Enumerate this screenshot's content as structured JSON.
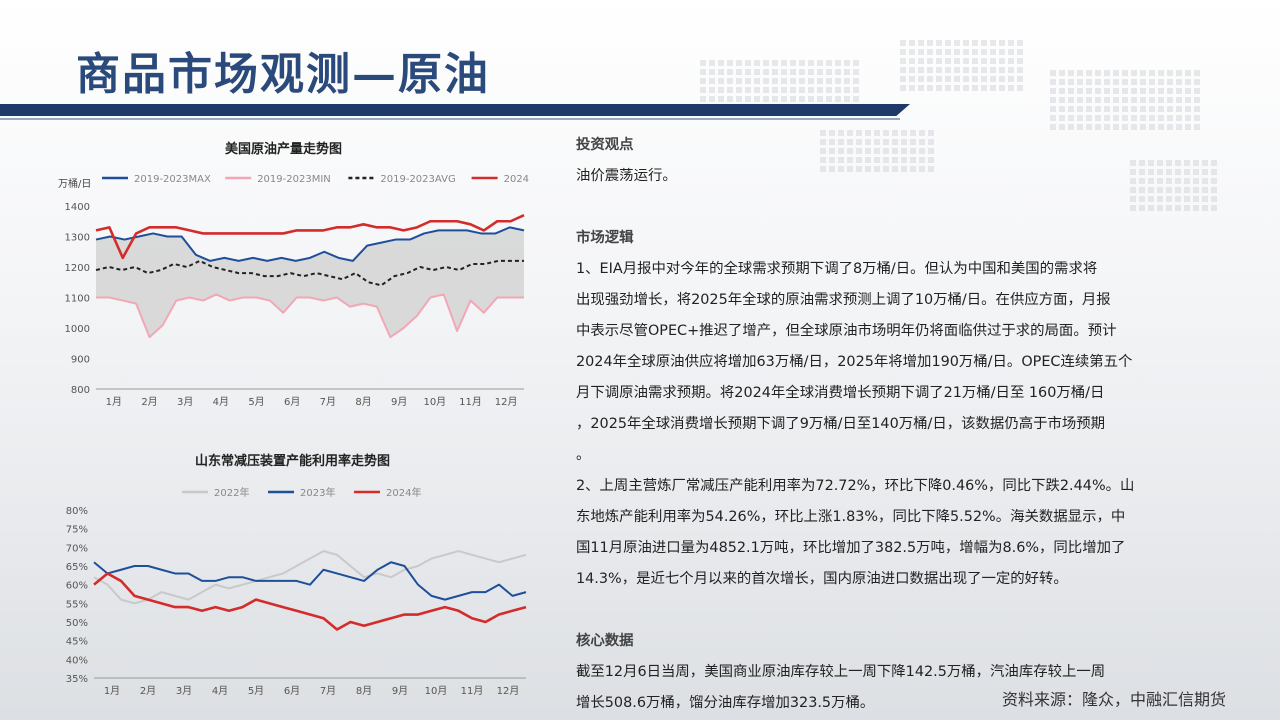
{
  "title": "商品市场观测—原油",
  "charts": [
    {
      "type": "line",
      "title": "美国原油产量走势图",
      "ylabel": "万桶/日",
      "yticks": [
        "1400",
        "1300",
        "1200",
        "1100",
        "1000",
        "900",
        "800"
      ],
      "ylim": [
        800,
        1400
      ],
      "categories": [
        "1月",
        "2月",
        "3月",
        "4月",
        "5月",
        "6月",
        "7月",
        "8月",
        "9月",
        "10月",
        "11月",
        "12月"
      ],
      "grid": false,
      "legend_position": "top",
      "series": [
        {
          "name": "2019-2023MAX",
          "color": "#1f4e9a",
          "style": "solid",
          "values": [
            1290,
            1300,
            1290,
            1300,
            1310,
            1300,
            1300,
            1240,
            1220,
            1230,
            1220,
            1230,
            1220,
            1230,
            1220,
            1230,
            1250,
            1230,
            1220,
            1270,
            1280,
            1290,
            1290,
            1310,
            1320,
            1320,
            1320,
            1310,
            1310,
            1330,
            1320
          ]
        },
        {
          "name": "2019-2023MIN",
          "color": "#f2a7b4",
          "style": "solid",
          "values": [
            1100,
            1100,
            1090,
            1080,
            970,
            1010,
            1090,
            1100,
            1090,
            1110,
            1090,
            1100,
            1100,
            1090,
            1050,
            1100,
            1100,
            1090,
            1100,
            1070,
            1080,
            1070,
            970,
            1000,
            1040,
            1100,
            1110,
            990,
            1090,
            1050,
            1100,
            1100,
            1100
          ]
        },
        {
          "name": "2019-2023AVG",
          "color": "#222222",
          "style": "dashed",
          "values": [
            1190,
            1200,
            1190,
            1200,
            1180,
            1190,
            1210,
            1200,
            1220,
            1200,
            1190,
            1180,
            1180,
            1170,
            1170,
            1180,
            1170,
            1180,
            1170,
            1160,
            1180,
            1150,
            1140,
            1170,
            1180,
            1200,
            1190,
            1200,
            1190,
            1210,
            1210,
            1220,
            1220,
            1220
          ]
        },
        {
          "name": "2024",
          "color": "#d42b2b",
          "style": "solid",
          "values": [
            1320,
            1330,
            1230,
            1310,
            1330,
            1330,
            1330,
            1320,
            1310,
            1310,
            1310,
            1310,
            1310,
            1310,
            1310,
            1320,
            1320,
            1320,
            1330,
            1330,
            1340,
            1330,
            1330,
            1320,
            1330,
            1350,
            1350,
            1350,
            1340,
            1320,
            1350,
            1350,
            1370
          ]
        }
      ]
    },
    {
      "type": "line",
      "title": "山东常减压装置产能利用率走势图",
      "yticks": [
        "80%",
        "75%",
        "70%",
        "65%",
        "60%",
        "55%",
        "50%",
        "45%",
        "40%",
        "35%"
      ],
      "ylim": [
        35,
        80
      ],
      "categories": [
        "1月",
        "2月",
        "3月",
        "4月",
        "5月",
        "6月",
        "7月",
        "8月",
        "9月",
        "10月",
        "11月",
        "12月"
      ],
      "grid": false,
      "legend_position": "top",
      "series": [
        {
          "name": "2022年",
          "color": "#c9c9c9",
          "style": "solid",
          "values": [
            62,
            60,
            56,
            55,
            56,
            58,
            57,
            56,
            58,
            60,
            59,
            60,
            61,
            62,
            63,
            65,
            67,
            69,
            68,
            65,
            62,
            63,
            62,
            64,
            65,
            67,
            68,
            69,
            68,
            67,
            66,
            67,
            68
          ]
        },
        {
          "name": "2023年",
          "color": "#1f4e9a",
          "style": "solid",
          "values": [
            66,
            63,
            64,
            65,
            65,
            64,
            63,
            63,
            61,
            61,
            62,
            62,
            61,
            61,
            61,
            61,
            60,
            64,
            63,
            62,
            61,
            64,
            66,
            65,
            60,
            57,
            56,
            57,
            58,
            58,
            60,
            57,
            58
          ]
        },
        {
          "name": "2024年",
          "color": "#d42b2b",
          "style": "solid",
          "values": [
            60,
            63,
            61,
            57,
            56,
            55,
            54,
            54,
            53,
            54,
            53,
            54,
            56,
            55,
            54,
            53,
            52,
            51,
            48,
            50,
            49,
            50,
            51,
            52,
            52,
            53,
            54,
            53,
            51,
            50,
            52,
            53,
            54
          ]
        }
      ]
    }
  ],
  "right": {
    "h1": "投资观点",
    "p1": "油价震荡运行。",
    "h2": "市场逻辑",
    "lines1": [
      "1、EIA月报中对今年的全球需求预期下调了8万桶/日。但认为中国和美国的需求将",
      "出现强劲增长，将2025年全球的原油需求预测上调了10万桶/日。在供应方面，月报",
      "中表示尽管OPEC+推迟了增产，但全球原油市场明年仍将面临供过于求的局面。预计",
      "2024年全球原油供应将增加63万桶/日，2025年将增加190万桶/日。OPEC连续第五个",
      "月下调原油需求预期。将2024年全球消费增长预期下调了21万桶/日至 160万桶/日",
      "，2025年全球消费增长预期下调了9万桶/日至140万桶/日，该数据仍高于市场预期",
      "。"
    ],
    "lines2": [
      "2、上周主营炼厂常减压产能利用率为72.72%，环比下降0.46%，同比下跌2.44%。山",
      "东地炼产能利用率为54.26%，环比上涨1.83%，同比下降5.52%。海关数据显示，中",
      "国11月原油进口量为4852.1万吨，环比增加了382.5万吨，增幅为8.6%，同比增加了",
      "14.3%，是近七个月以来的首次增长，国内原油进口数据出现了一定的好转。"
    ],
    "h3": "核心数据",
    "lines3": [
      "截至12月6日当周，美国商业原油库存较上一周下降142.5万桶，汽油库存较上一周",
      "增长508.6万桶，馏分油库存增加323.5万桶。"
    ]
  },
  "source": "资料来源：隆众，中融汇信期货"
}
